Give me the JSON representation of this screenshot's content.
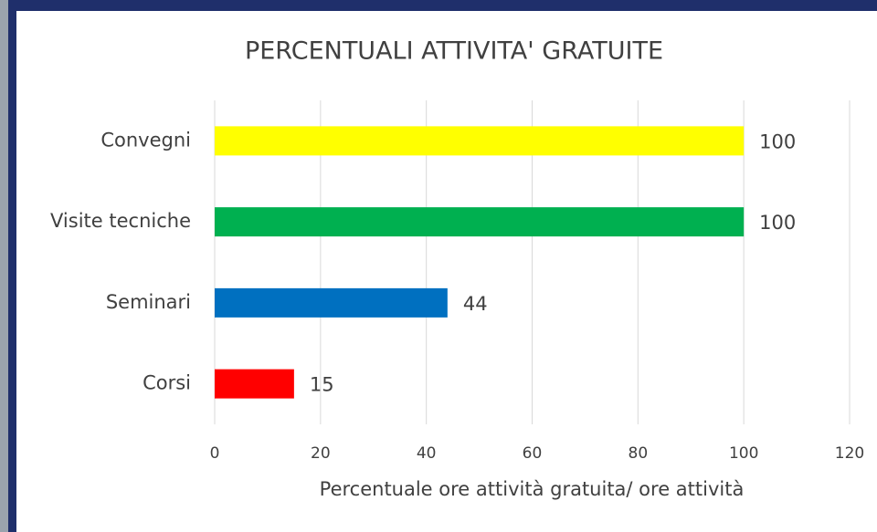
{
  "chart_data": {
    "type": "bar",
    "orientation": "horizontal",
    "title": "PERCENTUALI  ATTIVITA' GRATUITE",
    "x_label": "Percentuale  ore attività gratuita/ ore attività",
    "categories": [
      "Convegni",
      "Visite tecniche",
      "Seminari",
      "Corsi"
    ],
    "values": [
      100,
      100,
      44,
      15
    ],
    "colors": [
      "#ffff00",
      "#00b050",
      "#0070c0",
      "#ff0000"
    ],
    "xlim": [
      0,
      120
    ],
    "xticks": [
      0,
      20,
      40,
      60,
      80,
      100,
      120
    ],
    "grid": true
  }
}
